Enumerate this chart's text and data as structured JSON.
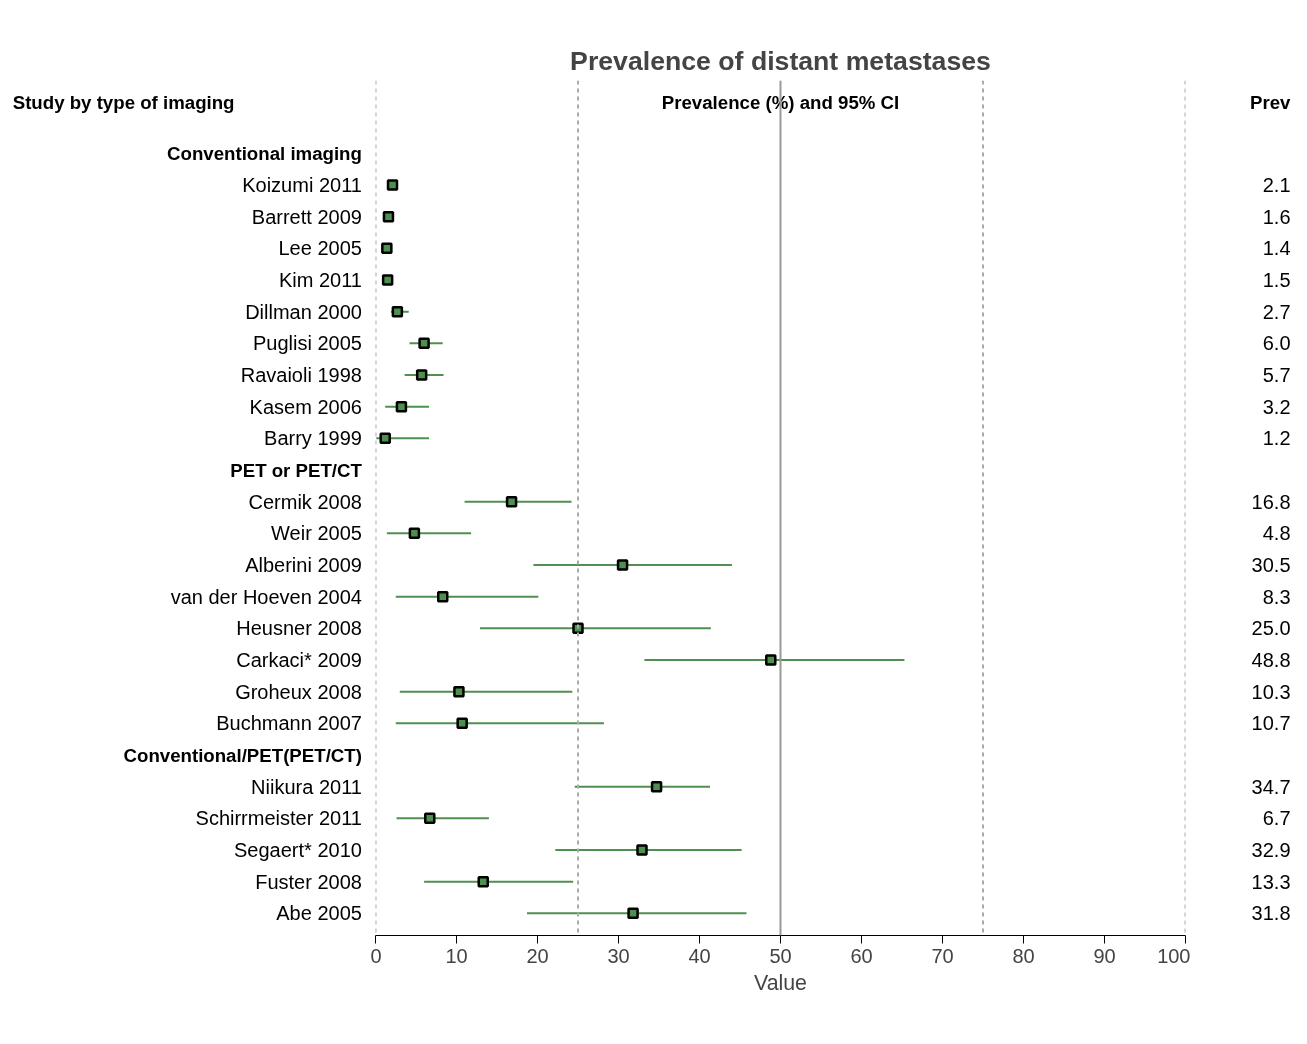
{
  "chart_data": {
    "type": "scatter",
    "orientation": "horizontal",
    "title": "Prevalence of distant metastases",
    "xlabel": "Value",
    "annotations": [
      "Study by type of imaging",
      "Prevalence (%) and 95% CI",
      "Prev"
    ],
    "categories": [
      "Conventional imaging",
      "Koizumi 2011",
      "Barrett 2009",
      "Lee 2005",
      "Kim 2011",
      "Dillman 2000",
      "Puglisi 2005",
      "Ravaioli 1998",
      "Kasem 2006",
      "Barry 1999",
      "PET or PET/CT",
      "Cermik 2008",
      "Weir 2005",
      "Alberini 2009",
      "van der Hoeven 2004",
      "Heusner 2008",
      "Carkaci* 2009",
      "Groheux 2008",
      "Buchmann 2007",
      "Conventional/PET(PET/CT)",
      "Niikura 2011",
      "Schirrmeister 2011",
      "Segaert* 2010",
      "Fuster 2008",
      "Abe 2005"
    ],
    "series": [
      {
        "color": "#4f8f4f",
        "values": [
          null,
          2.1,
          1.6,
          1.4,
          1.5,
          2.7,
          6.0,
          5.7,
          3.2,
          1.2,
          null,
          16.8,
          4.8,
          30.5,
          8.3,
          25.0,
          48.8,
          10.3,
          10.7,
          null,
          34.7,
          6.7,
          32.9,
          13.3,
          31.8
        ],
        "errors": [
          null,
          null,
          null,
          null,
          null,
          [
            1.9,
            4.1
          ],
          [
            4.2,
            8.3
          ],
          [
            3.6,
            8.4
          ],
          [
            1.2,
            6.6
          ],
          [
            0.1,
            6.6
          ],
          null,
          [
            11.0,
            24.2
          ],
          [
            1.4,
            11.8
          ],
          [
            19.5,
            44.0
          ],
          [
            2.5,
            20.1
          ],
          [
            12.9,
            41.4
          ],
          [
            33.2,
            65.3
          ],
          [
            3.0,
            24.3
          ],
          [
            2.5,
            28.2
          ],
          null,
          [
            24.6,
            41.3
          ],
          [
            2.6,
            14.0
          ],
          [
            22.2,
            45.2
          ],
          [
            6.0,
            24.4
          ],
          [
            18.7,
            45.8
          ]
        ],
        "value_labels": [
          null,
          "2.1",
          "1.6",
          "1.4",
          "1.5",
          "2.7",
          "6.0",
          "5.7",
          "3.2",
          "1.2",
          null,
          "16.8",
          "4.8",
          "30.5",
          "8.3",
          "25.0",
          "48.8",
          "10.3",
          "10.7",
          null,
          "34.7",
          "6.7",
          "32.9",
          "13.3",
          "31.8"
        ]
      }
    ],
    "marker": "square",
    "grid": false,
    "xlim": [
      0,
      100
    ],
    "xticks": [
      0,
      10,
      20,
      30,
      40,
      50,
      60,
      70,
      80,
      90,
      100
    ],
    "ref_lines": [
      {
        "axis": "x",
        "value": 0,
        "line_style": "dashed",
        "color": "#aaaaaa"
      },
      {
        "axis": "x",
        "value": 25,
        "line_style": "dashed",
        "color": "#aaaaaa"
      },
      {
        "axis": "x",
        "value": 50,
        "line_style": "solid",
        "color": "#999999"
      },
      {
        "axis": "x",
        "value": 75,
        "line_style": "dashed",
        "color": "#aaaaaa"
      },
      {
        "axis": "x",
        "value": 100,
        "line_style": "dashed",
        "color": "#aaaaaa"
      }
    ]
  }
}
